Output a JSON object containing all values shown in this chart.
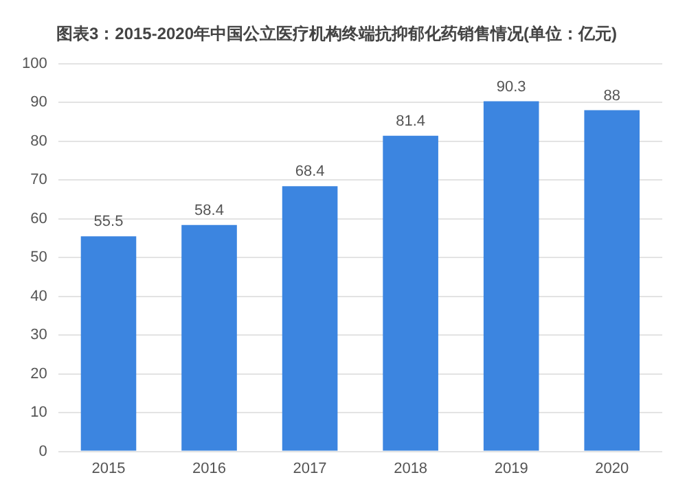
{
  "chart_data": {
    "type": "bar",
    "title": "图表3：2015-2020年中国公立医疗机构终端抗抑郁化药销售情况(单位：亿元)",
    "categories": [
      "2015",
      "2016",
      "2017",
      "2018",
      "2019",
      "2020"
    ],
    "values": [
      55.5,
      58.4,
      68.4,
      81.4,
      90.3,
      88
    ],
    "color": "#3c85e0",
    "ylim": [
      0,
      100
    ],
    "yticks": [
      0,
      10,
      20,
      30,
      40,
      50,
      60,
      70,
      80,
      90,
      100
    ],
    "grid": "y",
    "data_labels": true,
    "legend": false
  }
}
